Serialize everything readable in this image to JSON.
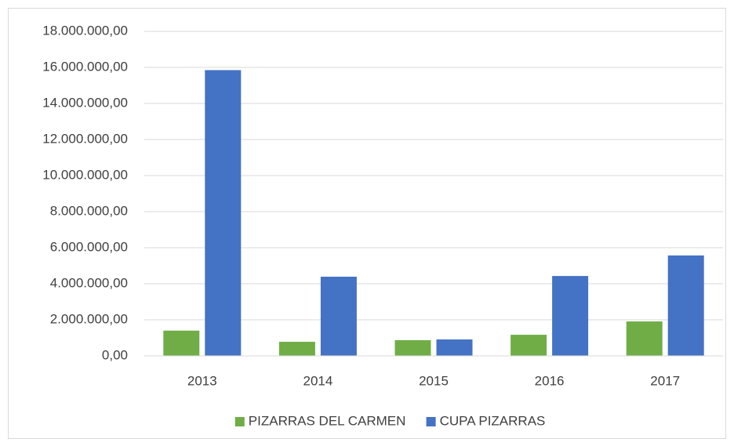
{
  "chart_data": {
    "type": "bar",
    "categories": [
      "2013",
      "2014",
      "2015",
      "2016",
      "2017"
    ],
    "series": [
      {
        "name": "PIZARRAS DEL CARMEN",
        "color": "#70ad47",
        "values": [
          1400000,
          780000,
          870000,
          1170000,
          1910000
        ]
      },
      {
        "name": "CUPA PIZARRAS",
        "color": "#4472c4",
        "values": [
          15850000,
          4390000,
          910000,
          4430000,
          5570000
        ]
      }
    ],
    "ylim": [
      0,
      18000000
    ],
    "yticks": [
      {
        "value": 0,
        "label": "0,00"
      },
      {
        "value": 2000000,
        "label": "2.000.000,00"
      },
      {
        "value": 4000000,
        "label": "4.000.000,00"
      },
      {
        "value": 6000000,
        "label": "6.000.000,00"
      },
      {
        "value": 8000000,
        "label": "8.000.000,00"
      },
      {
        "value": 10000000,
        "label": "10.000.000,00"
      },
      {
        "value": 12000000,
        "label": "12.000.000,00"
      },
      {
        "value": 14000000,
        "label": "14.000.000,00"
      },
      {
        "value": 16000000,
        "label": "16.000.000,00"
      },
      {
        "value": 18000000,
        "label": "18.000.000,00"
      }
    ],
    "grid": true,
    "legend": "bottom"
  }
}
